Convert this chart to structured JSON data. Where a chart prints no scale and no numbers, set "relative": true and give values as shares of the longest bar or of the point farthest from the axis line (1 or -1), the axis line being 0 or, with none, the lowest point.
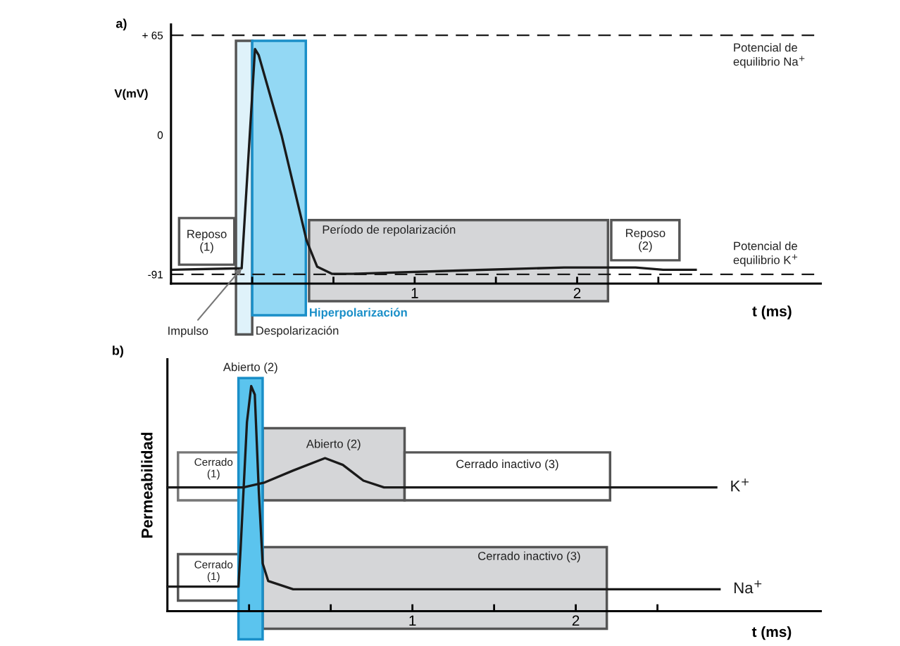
{
  "chart_data": [
    {
      "type": "line",
      "title": "a)",
      "ylabel": "V(mV)",
      "xlabel": "t (ms)",
      "series": [
        {
          "color": "#1a1a1a",
          "x": [
            -0.49,
            -0.065,
            0.017,
            0.04,
            0.18,
            0.335,
            0.4,
            0.49,
            0.62,
            1.27,
            1.92,
            2.36,
            2.53,
            2.73
          ],
          "values": [
            -88,
            -87,
            56,
            52,
            0,
            -69,
            -86,
            -90.6,
            -90.6,
            -88.5,
            -86.5,
            -86.5,
            -88,
            -88
          ]
        }
      ],
      "xlim": [
        -0.5,
        3.5
      ],
      "ylim": [
        -97,
        72
      ],
      "xticks": [
        {
          "value": 0,
          "label": null
        },
        {
          "value": 0.5,
          "label": null
        },
        1,
        {
          "value": 1.5,
          "label": null
        },
        2,
        {
          "value": 2.5,
          "label": null
        }
      ],
      "yticks": [
        {
          "value": 65,
          "label": "+ 65"
        },
        0,
        -91
      ],
      "ref_lines": [
        {
          "axis": "y",
          "value": 65,
          "label": "Potencial de\nequilibrio Na$^{+}$",
          "color": "#1a1a1a",
          "line_style": "dashed"
        },
        {
          "axis": "y",
          "value": -91,
          "label": "Potencial de\nequilibrio K$^{+}$",
          "color": "#1a1a1a",
          "line_style": "dashed"
        }
      ],
      "bands": [
        {
          "axis": "x",
          "from": -0.45,
          "to": -0.11,
          "label": "Reposo\n(1)",
          "color": "#ffffff"
        },
        {
          "axis": "x",
          "from": -0.1,
          "to": 0,
          "label": "Despolarización",
          "color": "#dff2fa"
        },
        {
          "axis": "x",
          "from": 0,
          "to": 0.33,
          "label": "Hiperpolarización",
          "color": "#93d8f4"
        },
        {
          "axis": "x",
          "from": 0.35,
          "to": 2.19,
          "label": "Período de repolarización",
          "color": "#d5d6d8"
        },
        {
          "axis": "x",
          "from": 2.21,
          "to": 2.63,
          "label": "Reposo\n(2)",
          "color": "#ffffff"
        }
      ],
      "annotations": [
        {
          "text": "Impulso",
          "x": -0.065,
          "y": -87
        }
      ],
      "grid": false,
      "legend": false,
      "marker": "none",
      "line_style": "solid"
    },
    {
      "type": "line",
      "title": "b)",
      "ylabel": "Permeabilidad",
      "xlabel": "t (ms)",
      "relative": true,
      "series": [
        {
          "name": "K$^{+}$",
          "color": "#1a1a1a",
          "x": [
            -0.5,
            -0.035,
            0.096,
            0.27,
            0.465,
            0.574,
            0.7,
            0.826,
            2.86
          ],
          "values": [
            0.55,
            0.55,
            0.572,
            0.625,
            0.68,
            0.65,
            0.58,
            0.55,
            0.55
          ]
        },
        {
          "name": "Na$^{+}$",
          "color": "#1a1a1a",
          "x": [
            -0.5,
            -0.065,
            -0.052,
            -0.013,
            0.013,
            0.035,
            0.06,
            0.083,
            0.117,
            0.27,
            2.88
          ],
          "values": [
            0.109,
            0.109,
            0.275,
            0.84,
            1.0,
            0.9625,
            0.525,
            0.2125,
            0.134,
            0.097,
            0.097
          ]
        }
      ],
      "xlim": [
        -0.5,
        3.5
      ],
      "xticks": [
        {
          "value": 0,
          "label": null
        },
        {
          "value": 0.5,
          "label": null
        },
        1,
        {
          "value": 1.5,
          "label": null
        },
        2,
        {
          "value": 2.5,
          "label": null
        }
      ],
      "bands": [
        {
          "axis": "x",
          "from": -0.435,
          "to": 0.083,
          "label": "Cerrado\n(1)",
          "color": "#ffffff"
        },
        {
          "axis": "x",
          "from": 0.083,
          "to": 0.952,
          "label": "Abierto (2)",
          "color": "#d5d6d8"
        },
        {
          "axis": "x",
          "from": 0.952,
          "to": 2.21,
          "label": "Cerrado inactivo (3)",
          "color": "#ffffff"
        },
        {
          "axis": "x",
          "from": -0.435,
          "to": 0.083,
          "label": "Cerrado\n(1)",
          "color": "#ffffff"
        },
        {
          "axis": "x",
          "from": 0.083,
          "to": 2.19,
          "label": "Cerrado inactivo (3)",
          "color": "#d5d6d8"
        },
        {
          "axis": "x",
          "from": -0.065,
          "to": 0.083,
          "label": "Abierto (2)",
          "color": "#5bc4ee"
        }
      ],
      "grid": false,
      "legend": false,
      "marker": "none",
      "line_style": "solid"
    }
  ]
}
